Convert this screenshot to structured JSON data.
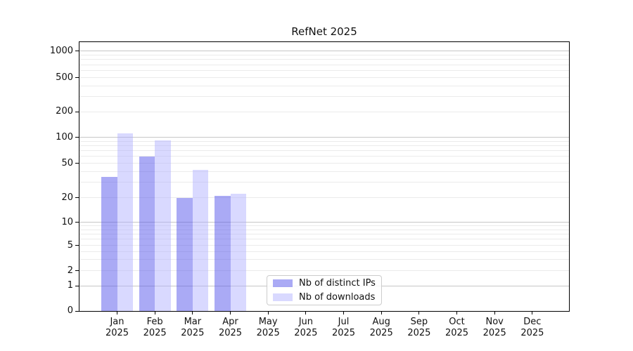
{
  "chart_data": {
    "type": "bar",
    "title": "RefNet 2025",
    "categories": [
      "Jan",
      "Feb",
      "Mar",
      "Apr",
      "May",
      "Jun",
      "Jul",
      "Aug",
      "Sep",
      "Oct",
      "Nov",
      "Dec"
    ],
    "x_tick_second_line": "2025",
    "series": [
      {
        "name": "Nb of distinct IPs",
        "color": "rgba(85,85,235,0.5)",
        "solid_color": "#aaaaf5",
        "values": [
          35,
          60,
          20,
          21,
          0,
          0,
          0,
          0,
          0,
          0,
          0,
          0
        ]
      },
      {
        "name": "Nb of downloads",
        "color": "rgba(170,170,255,0.45)",
        "solid_color": "#d9d9ff",
        "values": [
          110,
          92,
          42,
          22,
          0,
          0,
          0,
          0,
          0,
          0,
          0,
          0
        ]
      }
    ],
    "ytick_labels": [
      0,
      1,
      2,
      5,
      10,
      20,
      50,
      100,
      200,
      500,
      1000
    ],
    "yscale": "symlog",
    "ylim": [
      0,
      1300
    ],
    "xlabel": "",
    "ylabel": "",
    "grid": "horizontal, major and minor",
    "legend_position": "lower center, inside axes"
  },
  "colors": {
    "major_grid": "#c6c6c6",
    "minor_grid": "#ebebeb",
    "spine": "#000000",
    "background": "#ffffff"
  }
}
